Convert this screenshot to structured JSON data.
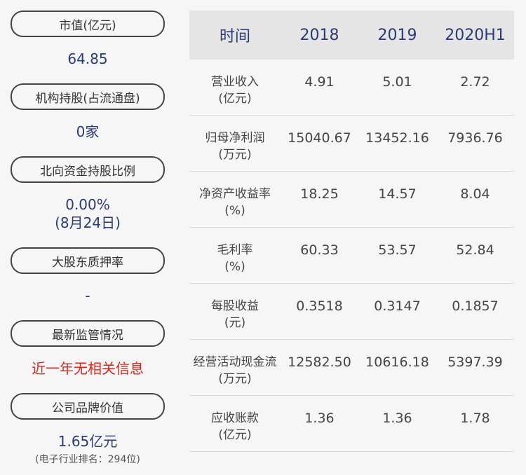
{
  "left": {
    "items": [
      {
        "label": "市值(亿元)",
        "value": "64.85"
      },
      {
        "label": "机构持股(占流通盘)",
        "value": "0家"
      },
      {
        "label": "北向资金持股比例",
        "value": "0.00%",
        "value2": "(8月24日)"
      },
      {
        "label": "大股东质押率",
        "value": "-"
      },
      {
        "label": "最新监管情况",
        "value": "近一年无相关信息"
      },
      {
        "label": "公司品牌价值",
        "value": "1.65亿元",
        "note": "(电子行业排名：294位)"
      }
    ]
  },
  "table": {
    "headers": [
      "时间",
      "2018",
      "2019",
      "2020H1"
    ],
    "rows": [
      {
        "label1": "营业收入",
        "label2": "(亿元)",
        "values": [
          "4.91",
          "5.01",
          "2.72"
        ]
      },
      {
        "label1": "归母净利润",
        "label2": "(万元)",
        "values": [
          "15040.67",
          "13452.16",
          "7936.76"
        ]
      },
      {
        "label1": "净资产收益率",
        "label2": "(%)",
        "values": [
          "18.25",
          "14.57",
          "8.04"
        ]
      },
      {
        "label1": "毛利率",
        "label2": "(%)",
        "values": [
          "60.33",
          "53.57",
          "52.84"
        ]
      },
      {
        "label1": "每股收益",
        "label2": "(元)",
        "values": [
          "0.3518",
          "0.3147",
          "0.1857"
        ]
      },
      {
        "label1": "经营活动现金流",
        "label2": "(万元)",
        "values": [
          "12582.50",
          "10616.18",
          "5397.39"
        ]
      },
      {
        "label1": "应收账款",
        "label2": "(亿元)",
        "values": [
          "1.36",
          "1.36",
          "1.78"
        ]
      }
    ]
  },
  "colors": {
    "value": "#2b3a78",
    "alert": "#d9261c",
    "header_bg": "#e5e5e5"
  }
}
